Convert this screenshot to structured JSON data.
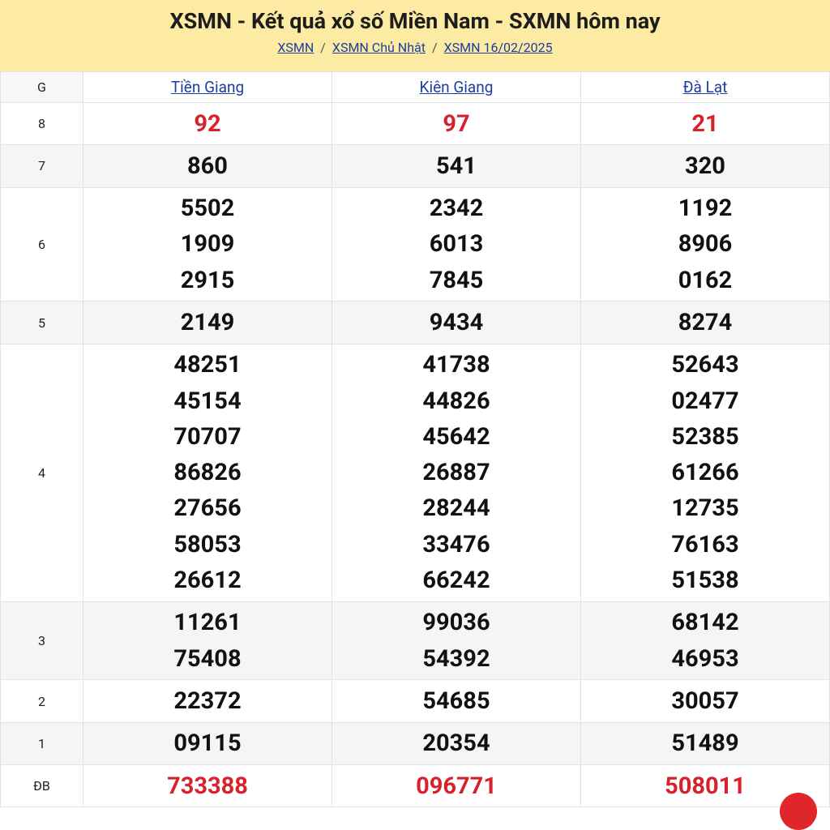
{
  "header": {
    "title": "XSMN - Kết quả xổ số Miền Nam - SXMN hôm nay",
    "breadcrumbs": [
      "XSMN",
      "XSMN Chủ Nhật",
      "XSMN 16/02/2025"
    ],
    "separator": "/"
  },
  "table": {
    "columns": [
      "G",
      "Tiền Giang",
      "Kiên Giang",
      "Đà Lạt"
    ],
    "rows": [
      {
        "prize": "8",
        "color": "#d7222b",
        "cells": [
          [
            "92"
          ],
          [
            "97"
          ],
          [
            "21"
          ]
        ]
      },
      {
        "prize": "7",
        "color": "#111111",
        "cells": [
          [
            "860"
          ],
          [
            "541"
          ],
          [
            "320"
          ]
        ]
      },
      {
        "prize": "6",
        "color": "#111111",
        "cells": [
          [
            "5502",
            "1909",
            "2915"
          ],
          [
            "2342",
            "6013",
            "7845"
          ],
          [
            "1192",
            "8906",
            "0162"
          ]
        ]
      },
      {
        "prize": "5",
        "color": "#111111",
        "cells": [
          [
            "2149"
          ],
          [
            "9434"
          ],
          [
            "8274"
          ]
        ]
      },
      {
        "prize": "4",
        "color": "#111111",
        "cells": [
          [
            "48251",
            "45154",
            "70707",
            "86826",
            "27656",
            "58053",
            "26612"
          ],
          [
            "41738",
            "44826",
            "45642",
            "26887",
            "28244",
            "33476",
            "66242"
          ],
          [
            "52643",
            "02477",
            "52385",
            "61266",
            "12735",
            "76163",
            "51538"
          ]
        ]
      },
      {
        "prize": "3",
        "color": "#111111",
        "cells": [
          [
            "11261",
            "75408"
          ],
          [
            "99036",
            "54392"
          ],
          [
            "68142",
            "46953"
          ]
        ]
      },
      {
        "prize": "2",
        "color": "#111111",
        "cells": [
          [
            "22372"
          ],
          [
            "54685"
          ],
          [
            "30057"
          ]
        ]
      },
      {
        "prize": "1",
        "color": "#111111",
        "cells": [
          [
            "09115"
          ],
          [
            "20354"
          ],
          [
            "51489"
          ]
        ]
      },
      {
        "prize": "ĐB",
        "color": "#d7222b",
        "cells": [
          [
            "733388"
          ],
          [
            "096771"
          ],
          [
            "508011"
          ]
        ]
      }
    ]
  }
}
